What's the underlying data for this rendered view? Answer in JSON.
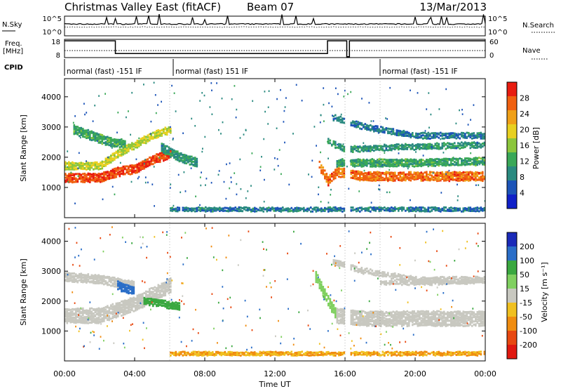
{
  "header": {
    "title": "Christmas Valley East (fitACF)",
    "beam": "Beam 07",
    "date": "13/Mar/2013"
  },
  "summary": {
    "nsky_label": "N.Sky",
    "nsky_ticks": [
      "10^5",
      "10^0"
    ],
    "nsearch_label": "N.Search",
    "freq_label": "Freq.",
    "freq_unit": "[MHz]",
    "freq_ticks": [
      "18",
      "8"
    ],
    "nave_label": "Nave",
    "nave_ticks": [
      "60",
      "0"
    ],
    "cpid_label": "CPID",
    "cpid_segments": [
      {
        "label": "normal (fast) -151 IF",
        "start": 0.0,
        "end": 6.2
      },
      {
        "label": "normal (fast) 151 IF",
        "start": 6.2,
        "end": 18.0
      },
      {
        "label": "normal (fast) -151 IF",
        "start": 18.0,
        "end": 24.0
      }
    ],
    "freq_series": [
      [
        0.0,
        17.2
      ],
      [
        2.9,
        17.2
      ],
      [
        2.9,
        10.2
      ],
      [
        15.0,
        10.2
      ],
      [
        15.0,
        17.2
      ],
      [
        16.1,
        17.2
      ],
      [
        16.1,
        8.5
      ],
      [
        16.25,
        8.5
      ],
      [
        16.25,
        17.2
      ],
      [
        24.0,
        17.2
      ]
    ]
  },
  "chart_data": [
    {
      "type": "heatmap",
      "name": "power",
      "ylabel": "Slant Range [km]",
      "yticks": [
        1000,
        2000,
        3000,
        4000
      ],
      "ylim": [
        0,
        4600
      ],
      "colorbar_label": "Power [dB]",
      "colorbar_ticks": [
        4,
        8,
        12,
        16,
        20,
        24,
        28
      ],
      "colorbar_range": [
        0,
        32
      ],
      "colors": [
        "#1020c8",
        "#1c54b8",
        "#2a8a80",
        "#3aa858",
        "#8cc63c",
        "#e8d020",
        "#f0a018",
        "#f06010",
        "#e81c10"
      ],
      "bands": [
        {
          "t": [
            0.0,
            2.0,
            3.0,
            4.0,
            5.0,
            6.0
          ],
          "r_mid": [
            1300,
            1300,
            1500,
            1600,
            1900,
            2100
          ],
          "width": 300,
          "value": 28
        },
        {
          "t": [
            0.0,
            2.0,
            3.0,
            4.0,
            5.0,
            6.0
          ],
          "r_mid": [
            1700,
            1700,
            2100,
            2400,
            2700,
            2900
          ],
          "width": 250,
          "value": 18
        },
        {
          "t": [
            0.5,
            1.5,
            2.5,
            3.5
          ],
          "r_mid": [
            2900,
            2700,
            2500,
            2400
          ],
          "width": 300,
          "value": 12
        },
        {
          "t": [
            5.5,
            6.5,
            7.5
          ],
          "r_mid": [
            2300,
            2000,
            1800
          ],
          "width": 300,
          "value": 10
        },
        {
          "t": [
            14.5,
            15.0,
            15.5,
            16.0,
            17.0,
            20.0,
            24.0
          ],
          "r_mid": [
            1700,
            1200,
            1500,
            1450,
            1350,
            1350,
            1350
          ],
          "width": 300,
          "value": 26
        },
        {
          "t": [
            15.5,
            17.0,
            20.0,
            24.0
          ],
          "r_mid": [
            1800,
            1800,
            1800,
            1850
          ],
          "width": 250,
          "value": 12
        },
        {
          "t": [
            15.0,
            16.0,
            18.0,
            21.0,
            24.0
          ],
          "r_mid": [
            2500,
            2250,
            2300,
            2350,
            2400
          ],
          "width": 200,
          "value": 10
        },
        {
          "t": [
            15.3,
            17.0,
            20.0,
            24.0
          ],
          "r_mid": [
            3300,
            3000,
            2700,
            2700
          ],
          "width": 200,
          "value": 8
        },
        {
          "t": [
            6.0,
            24.0
          ],
          "r_mid": [
            260,
            260
          ],
          "width": 140,
          "value": 8
        }
      ]
    },
    {
      "type": "heatmap",
      "name": "velocity",
      "ylabel": "Slant Range [km]",
      "yticks": [
        1000,
        2000,
        3000,
        4000
      ],
      "ylim": [
        0,
        4600
      ],
      "colorbar_label": "Velocity [m s⁻¹]",
      "colorbar_ticks": [
        200,
        100,
        50,
        15,
        -15,
        -50,
        -100,
        -200
      ],
      "colors": [
        "#1a2ab8",
        "#2a6ec8",
        "#3aa840",
        "#80d060",
        "#c8c8c0",
        "#f0c020",
        "#f08c10",
        "#e84810",
        "#e01810"
      ],
      "bands": [
        {
          "t": [
            0.0,
            2.0,
            3.0,
            4.0,
            5.0,
            6.0
          ],
          "r_mid": [
            1500,
            1500,
            1700,
            1900,
            2200,
            2500
          ],
          "width": 500,
          "value": 0
        },
        {
          "t": [
            0.0,
            2.0,
            3.0,
            4.0
          ],
          "r_mid": [
            2800,
            2700,
            2600,
            2500
          ],
          "width": 300,
          "value": 0
        },
        {
          "t": [
            3.0,
            3.5,
            4.0
          ],
          "r_mid": [
            2500,
            2400,
            2300
          ],
          "width": 300,
          "value": 150
        },
        {
          "t": [
            4.5,
            5.5,
            6.5
          ],
          "r_mid": [
            2000,
            1900,
            1800
          ],
          "width": 250,
          "value": 60
        },
        {
          "t": [
            14.3,
            15.0,
            15.5
          ],
          "r_mid": [
            2800,
            2000,
            1500
          ],
          "width": 350,
          "value": 45
        },
        {
          "t": [
            15.5,
            17.0,
            20.0,
            24.0
          ],
          "r_mid": [
            1500,
            1400,
            1400,
            1400
          ],
          "width": 500,
          "value": 0
        },
        {
          "t": [
            18.0,
            21.0,
            24.0
          ],
          "r_mid": [
            2600,
            2600,
            2650
          ],
          "width": 150,
          "value": 0
        },
        {
          "t": [
            15.3,
            17.0,
            20.0,
            24.0
          ],
          "r_mid": [
            3300,
            3000,
            2700,
            2700
          ],
          "width": 200,
          "value": 0
        },
        {
          "t": [
            6.0,
            24.0
          ],
          "r_mid": [
            230,
            230
          ],
          "width": 130,
          "value": -50
        }
      ]
    }
  ],
  "xaxis": {
    "label": "Time UT",
    "ticks": [
      "00:00",
      "04:00",
      "08:00",
      "12:00",
      "16:00",
      "20:00",
      "00:00"
    ],
    "xlim": [
      0,
      24
    ]
  }
}
